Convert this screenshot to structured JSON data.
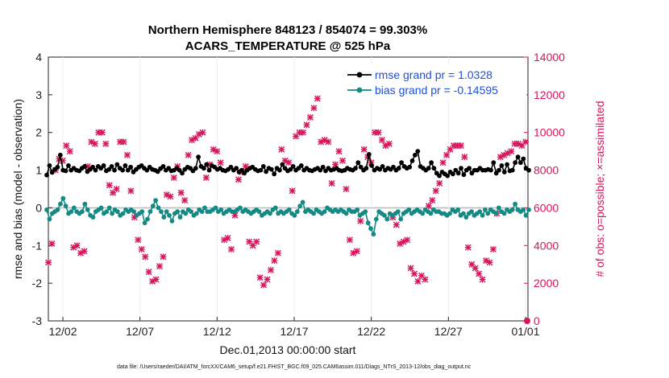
{
  "chart_data": {
    "type": "line",
    "title": "Northern Hemisphere 848123 / 854074 = 99.303%",
    "subtitle": "ACARS_TEMPERATURE @ 525 hPa",
    "xlabel": "Dec.01,2013 00:00:00 start",
    "ylabel_left": "rmse and bias (model - observation)",
    "ylabel_right": "# of obs: o=possible; ×=assimilated",
    "ylim_left": [
      -3,
      4
    ],
    "ylim_right": [
      0,
      14000
    ],
    "yticks_left": [
      "4",
      "3",
      "2",
      "1",
      "0",
      "-1",
      "-2",
      "-3"
    ],
    "yticks_right": [
      "14000",
      "12000",
      "10000",
      "8000",
      "6000",
      "4000",
      "2000",
      "0"
    ],
    "xticks": [
      "12/02",
      "12/07",
      "12/12",
      "12/17",
      "12/22",
      "12/27",
      "01/01"
    ],
    "footnote": "data file: /Users/raeder/DAI/ATM_forcXX/CAM6_setup/f.e21.FHIST_BGC.f09_025.CAM6assim.011/Diags_NTrS_2013-12/obs_diag_output.nc",
    "colors": {
      "rmse": "#000000",
      "bias": "#138a84",
      "counts": "#d6165d",
      "legend_text": "#1f4fd6",
      "zero_line": "#b8b8b8"
    },
    "legend": [
      {
        "label": "rmse grand pr = 1.0328",
        "series": "rmse"
      },
      {
        "label": "bias grand pr = -0.14595",
        "series": "bias"
      }
    ],
    "series": [
      {
        "name": "rmse",
        "axis": "left",
        "values": [
          0.87,
          1.12,
          0.94,
          1.02,
          1.08,
          1.4,
          1.0,
          0.98,
          1.12,
          1.0,
          1.05,
          1.0,
          0.98,
          1.05,
          1.1,
          0.96,
          1.02,
          1.08,
          1.0,
          1.1,
          1.05,
          1.12,
          0.98,
          1.02,
          1.1,
          1.0,
          1.15,
          1.05,
          1.0,
          1.12,
          1.0,
          1.08,
          0.95,
          1.02,
          1.08,
          1.12,
          1.05,
          1.0,
          1.08,
          1.02,
          1.0,
          0.96,
          1.04,
          1.1,
          1.0,
          1.05,
          0.98,
          1.0,
          1.05,
          1.0,
          0.92,
          1.02,
          1.08,
          1.05,
          0.98,
          1.05,
          1.35,
          1.1,
          1.05,
          1.15,
          1.0,
          1.12,
          1.08,
          1.02,
          1.05,
          1.0,
          0.98,
          1.02,
          1.08,
          1.0,
          1.05,
          0.95,
          1.0,
          0.92,
          1.0,
          1.05,
          1.08,
          1.02,
          0.98,
          1.0,
          1.1,
          0.96,
          1.05,
          1.02,
          0.9,
          1.05,
          1.0,
          1.15,
          1.05,
          0.98,
          1.02,
          1.1,
          1.0,
          1.05,
          1.12,
          1.0,
          1.05,
          1.0,
          0.98,
          1.02,
          1.05,
          1.0,
          1.08,
          0.98,
          1.05,
          1.0,
          1.02,
          1.05,
          1.0,
          0.98,
          1.0,
          1.05,
          1.02,
          1.0,
          1.05,
          1.2,
          1.08,
          1.0,
          1.05,
          1.42,
          1.12,
          1.0,
          1.05,
          1.02,
          1.1,
          1.0,
          1.05,
          1.02,
          1.08,
          1.0,
          1.05,
          1.2,
          1.1,
          1.05,
          1.08,
          1.25,
          1.4,
          1.5,
          1.1,
          1.05,
          1.0,
          1.05,
          1.2,
          1.05,
          0.92,
          0.85,
          0.95,
          0.9,
          0.85,
          0.95,
          0.9,
          1.0,
          0.92,
          1.05,
          0.88,
          1.0,
          1.05,
          0.92,
          1.0,
          1.0,
          1.05,
          1.0,
          1.0,
          1.02,
          1.0,
          1.2,
          0.92,
          1.0,
          1.12,
          0.95,
          1.15,
          0.98,
          1.0,
          1.2,
          1.35,
          1.2,
          1.3,
          1.05,
          1.0
        ]
      },
      {
        "name": "bias",
        "axis": "left",
        "values": [
          -0.05,
          -0.3,
          -0.15,
          -0.1,
          -0.05,
          0.1,
          0.25,
          0.05,
          -0.15,
          -0.1,
          0.0,
          -0.1,
          -0.15,
          -0.1,
          0.1,
          -0.05,
          -0.2,
          -0.25,
          -0.1,
          -0.05,
          0.0,
          -0.15,
          -0.1,
          0.0,
          -0.15,
          -0.05,
          -0.1,
          -0.2,
          -0.15,
          -0.05,
          -0.1,
          -0.05,
          -0.1,
          -0.2,
          -0.15,
          -0.1,
          -0.4,
          -0.3,
          -0.1,
          0.05,
          0.2,
          0.0,
          -0.1,
          -0.25,
          -0.1,
          -0.2,
          -0.35,
          -0.15,
          -0.1,
          -0.25,
          -0.1,
          -0.15,
          -0.05,
          -0.1,
          -0.2,
          -0.15,
          -0.05,
          -0.1,
          0.0,
          -0.1,
          -0.1,
          -0.05,
          0.0,
          -0.1,
          -0.05,
          -0.15,
          -0.1,
          -0.05,
          -0.1,
          -0.1,
          -0.05,
          0.0,
          -0.1,
          -0.05,
          -0.1,
          -0.15,
          -0.1,
          -0.05,
          -0.1,
          -0.2,
          -0.15,
          -0.1,
          -0.15,
          -0.05,
          0.0,
          -0.15,
          -0.1,
          -0.15,
          -0.1,
          -0.05,
          -0.15,
          -0.2,
          -0.1,
          0.05,
          0.15,
          -0.1,
          -0.05,
          -0.1,
          -0.15,
          -0.05,
          -0.1,
          -0.15,
          -0.1,
          0.0,
          -0.05,
          -0.1,
          -0.05,
          -0.1,
          -0.05,
          -0.1,
          -0.15,
          -0.05,
          -0.1,
          -0.1,
          -0.05,
          -0.2,
          -0.15,
          -0.1,
          -0.4,
          -0.55,
          -0.7,
          -0.3,
          -0.1,
          -0.15,
          -0.2,
          -0.3,
          -0.15,
          -0.2,
          -0.15,
          -0.1,
          -0.3,
          -0.15,
          -0.1,
          -0.05,
          -0.15,
          -0.1,
          -0.05,
          -0.1,
          -0.15,
          -0.05,
          -0.1,
          -0.15,
          -0.05,
          -0.1,
          -0.1,
          -0.15,
          -0.15,
          -0.2,
          -0.15,
          -0.05,
          -0.1,
          -0.05,
          -0.2,
          -0.15,
          -0.25,
          -0.15,
          -0.1,
          -0.2,
          -0.15,
          -0.1,
          -0.2,
          -0.05,
          -0.15,
          -0.05,
          -0.1,
          -0.15,
          0.0,
          -0.1,
          -0.15,
          -0.05,
          -0.1,
          -0.05,
          0.1,
          -0.05,
          -0.1,
          -0.05,
          -0.2,
          -0.05
        ]
      },
      {
        "name": "obs_assimilated",
        "axis": "right",
        "values": [
          3100,
          4100,
          8000,
          8600,
          8500,
          9300,
          9000,
          3900,
          4000,
          3600,
          3700,
          8200,
          9500,
          9400,
          10000,
          10000,
          9400,
          7200,
          6800,
          7000,
          9500,
          9500,
          8800,
          6900,
          5500,
          4300,
          3800,
          3400,
          2600,
          2100,
          2200,
          2900,
          3400,
          6700,
          6600,
          7600,
          8200,
          6800,
          6400,
          8800,
          9600,
          9700,
          9900,
          10000,
          7600,
          8300,
          9100,
          9000,
          8400,
          4300,
          4400,
          3800,
          5600,
          7500,
          7900,
          8200,
          4200,
          4000,
          4200,
          2300,
          1900,
          2200,
          2700,
          3200,
          3600,
          9100,
          8500,
          8400,
          6900,
          9800,
          10000,
          10000,
          10400,
          10800,
          11300,
          11800,
          9500,
          9600,
          9500,
          7300,
          8300,
          9000,
          8500,
          7000,
          4300,
          3600,
          3700,
          5300,
          9100,
          8700,
          8400,
          10000,
          10000,
          9600,
          9300,
          9400,
          5500,
          5100,
          4100,
          4200,
          4300,
          2800,
          2500,
          2100,
          2400,
          2200,
          6100,
          6400,
          6900,
          7300,
          8400,
          8800,
          9100,
          9300,
          9300,
          9300,
          8700,
          3900,
          3000,
          2800,
          2500,
          2200,
          3200,
          3100,
          3800,
          5700,
          8700,
          8800,
          8900,
          9000,
          9400,
          9400,
          9300,
          9500
        ]
      }
    ]
  }
}
